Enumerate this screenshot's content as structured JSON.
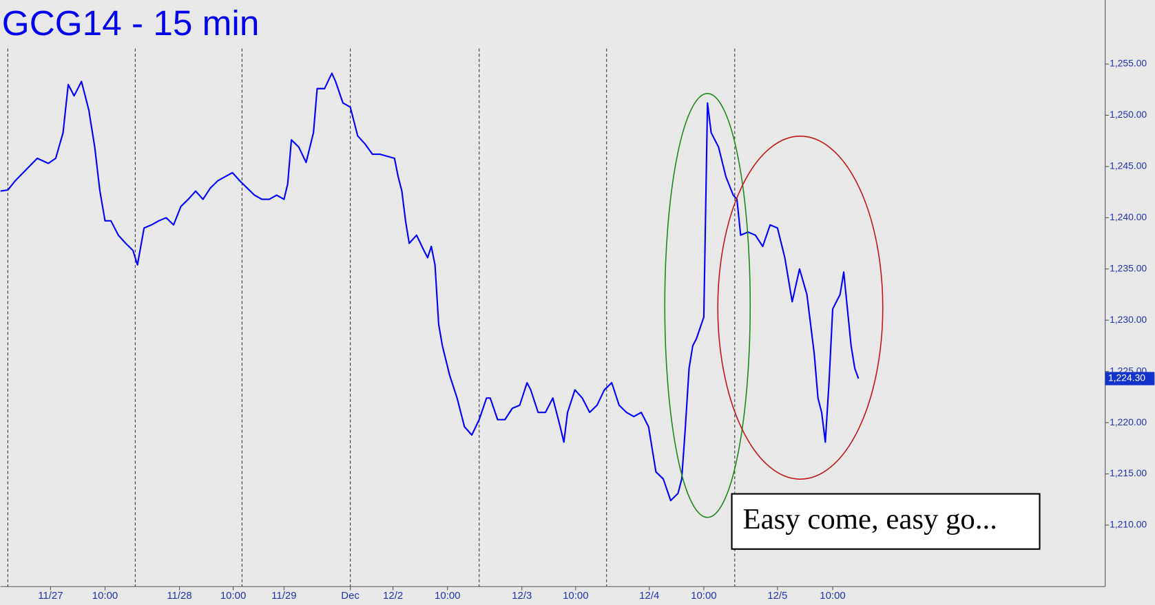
{
  "chart_data": {
    "type": "line",
    "title": "GCG14 - 15 min",
    "color": "#0000ff",
    "annotation": "Easy come, easy go...",
    "last": {
      "value": 1224.3,
      "label": "1,224.30"
    },
    "xlim": [
      0,
      1500
    ],
    "ylim": [
      1204,
      1261.25
    ],
    "xticks": [
      {
        "value": 68,
        "label": "11/27"
      },
      {
        "value": 142,
        "label": "10:00"
      },
      {
        "value": 243,
        "label": "11/28"
      },
      {
        "value": 316,
        "label": "10:00"
      },
      {
        "value": 385,
        "label": "11/29"
      },
      {
        "value": 475,
        "label": "Dec"
      },
      {
        "value": 533,
        "label": "12/2"
      },
      {
        "value": 607,
        "label": "10:00"
      },
      {
        "value": 708,
        "label": "12/3"
      },
      {
        "value": 781,
        "label": "10:00"
      },
      {
        "value": 881,
        "label": "12/4"
      },
      {
        "value": 955,
        "label": "10:00"
      },
      {
        "value": 1055,
        "label": "12/5"
      },
      {
        "value": 1130,
        "label": "10:00"
      }
    ],
    "yticks": [
      {
        "value": 1210,
        "label": "1,210.00"
      },
      {
        "value": 1215,
        "label": "1,215.00"
      },
      {
        "value": 1220,
        "label": "1,220.00"
      },
      {
        "value": 1225,
        "label": "1,225.00"
      },
      {
        "value": 1230,
        "label": "1,230.00"
      },
      {
        "value": 1235,
        "label": "1,235.00"
      },
      {
        "value": 1240,
        "label": "1,240.00"
      },
      {
        "value": 1245,
        "label": "1,245.00"
      },
      {
        "value": 1250,
        "label": "1,250.00"
      },
      {
        "value": 1255,
        "label": "1,255.00"
      }
    ],
    "x": [
      0,
      10,
      20,
      35,
      50,
      65,
      75,
      85,
      92,
      100,
      110,
      120,
      128,
      135,
      142,
      150,
      160,
      170,
      180,
      186,
      195,
      205,
      215,
      225,
      235,
      245,
      255,
      265,
      275,
      285,
      295,
      305,
      315,
      325,
      335,
      345,
      355,
      365,
      375,
      385,
      390,
      395,
      405,
      415,
      425,
      430,
      440,
      450,
      455,
      465,
      475,
      485,
      495,
      505,
      515,
      525,
      535,
      540,
      545,
      550,
      555,
      565,
      575,
      580,
      585,
      590,
      595,
      600,
      610,
      620,
      630,
      640,
      650,
      660,
      665,
      675,
      685,
      695,
      705,
      715,
      720,
      730,
      740,
      750,
      760,
      765,
      770,
      780,
      790,
      800,
      810,
      820,
      830,
      840,
      850,
      860,
      870,
      880,
      890,
      900,
      910,
      920,
      925,
      930,
      935,
      940,
      945,
      955,
      960,
      965,
      975,
      985,
      995,
      1000,
      1005,
      1015,
      1025,
      1035,
      1045,
      1055,
      1065,
      1075,
      1085,
      1095,
      1105,
      1110,
      1115,
      1120,
      1125,
      1130,
      1140,
      1145,
      1150,
      1155,
      1160,
      1165
    ],
    "values": [
      1242.6,
      1242.7,
      1243.6,
      1244.7,
      1245.8,
      1245.3,
      1245.8,
      1248.3,
      1253.0,
      1251.9,
      1253.3,
      1250.5,
      1246.9,
      1242.6,
      1239.7,
      1239.7,
      1238.3,
      1237.5,
      1236.8,
      1235.4,
      1239.0,
      1239.3,
      1239.7,
      1240.0,
      1239.3,
      1241.1,
      1241.8,
      1242.6,
      1241.8,
      1242.9,
      1243.6,
      1244.0,
      1244.4,
      1243.6,
      1242.9,
      1242.2,
      1241.8,
      1241.8,
      1242.2,
      1241.8,
      1243.3,
      1247.6,
      1246.9,
      1245.4,
      1248.3,
      1252.6,
      1252.6,
      1254.1,
      1253.3,
      1251.2,
      1250.8,
      1248.0,
      1247.2,
      1246.2,
      1246.2,
      1246.0,
      1245.8,
      1244.0,
      1242.6,
      1239.7,
      1237.5,
      1238.3,
      1236.8,
      1236.1,
      1237.2,
      1235.4,
      1229.6,
      1227.5,
      1224.6,
      1222.4,
      1219.6,
      1218.8,
      1220.3,
      1222.4,
      1222.4,
      1220.3,
      1220.3,
      1221.4,
      1221.7,
      1223.9,
      1223.2,
      1221.0,
      1221.0,
      1222.4,
      1219.6,
      1218.1,
      1221.0,
      1223.2,
      1222.4,
      1221.0,
      1221.7,
      1223.2,
      1223.9,
      1221.7,
      1221.0,
      1220.6,
      1221.0,
      1219.6,
      1215.2,
      1214.5,
      1212.4,
      1213.1,
      1214.5,
      1219.6,
      1225.3,
      1227.5,
      1228.2,
      1230.3,
      1251.2,
      1248.3,
      1246.9,
      1244.0,
      1242.2,
      1241.8,
      1238.3,
      1238.6,
      1238.3,
      1237.2,
      1239.3,
      1239.0,
      1236.1,
      1231.8,
      1235.0,
      1232.5,
      1226.7,
      1222.4,
      1221.0,
      1218.1,
      1223.9,
      1231.1,
      1232.5,
      1234.7,
      1231.1,
      1227.5,
      1225.3,
      1224.3
    ]
  }
}
